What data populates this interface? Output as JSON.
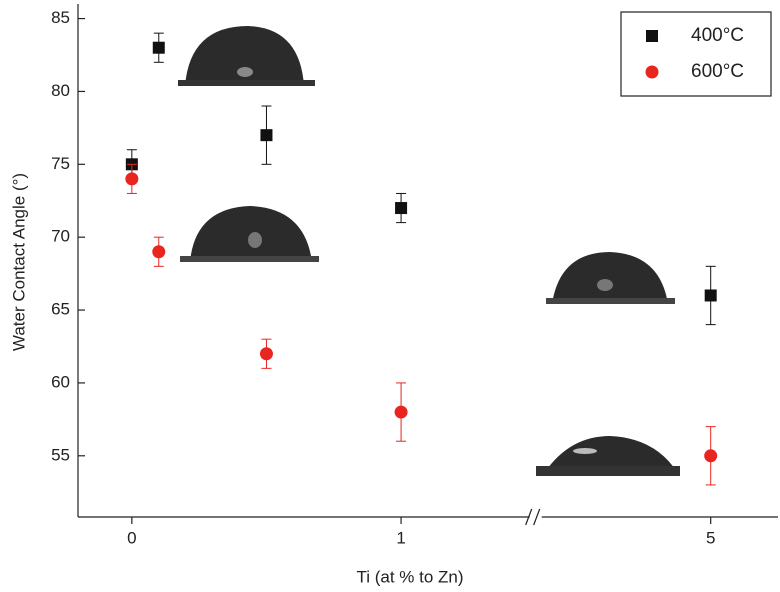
{
  "chart_data": {
    "type": "scatter",
    "xlabel": "Ti (at % to Zn)",
    "ylabel": "Water Contact Angle (°)",
    "xlim": [
      -0.2,
      5.25
    ],
    "xbreak": [
      1.5,
      4.35
    ],
    "xticks": [
      0,
      1,
      5
    ],
    "ylim": [
      50.8,
      86
    ],
    "yticks": [
      55,
      60,
      65,
      70,
      75,
      80,
      85
    ],
    "legend": "upper right",
    "series": [
      {
        "name": "400°C",
        "color": "#111111",
        "marker": "square",
        "x": [
          0,
          0.1,
          0.5,
          1,
          5
        ],
        "values": [
          75,
          83,
          77,
          72,
          66
        ],
        "errors": [
          1,
          1,
          2,
          1,
          2
        ]
      },
      {
        "name": "600°C",
        "color": "#e8251f",
        "marker": "circle",
        "x": [
          0,
          0.1,
          0.5,
          1,
          5
        ],
        "values": [
          74,
          69,
          62,
          58,
          55
        ],
        "errors": [
          1,
          1,
          1,
          2,
          2
        ]
      }
    ]
  }
}
